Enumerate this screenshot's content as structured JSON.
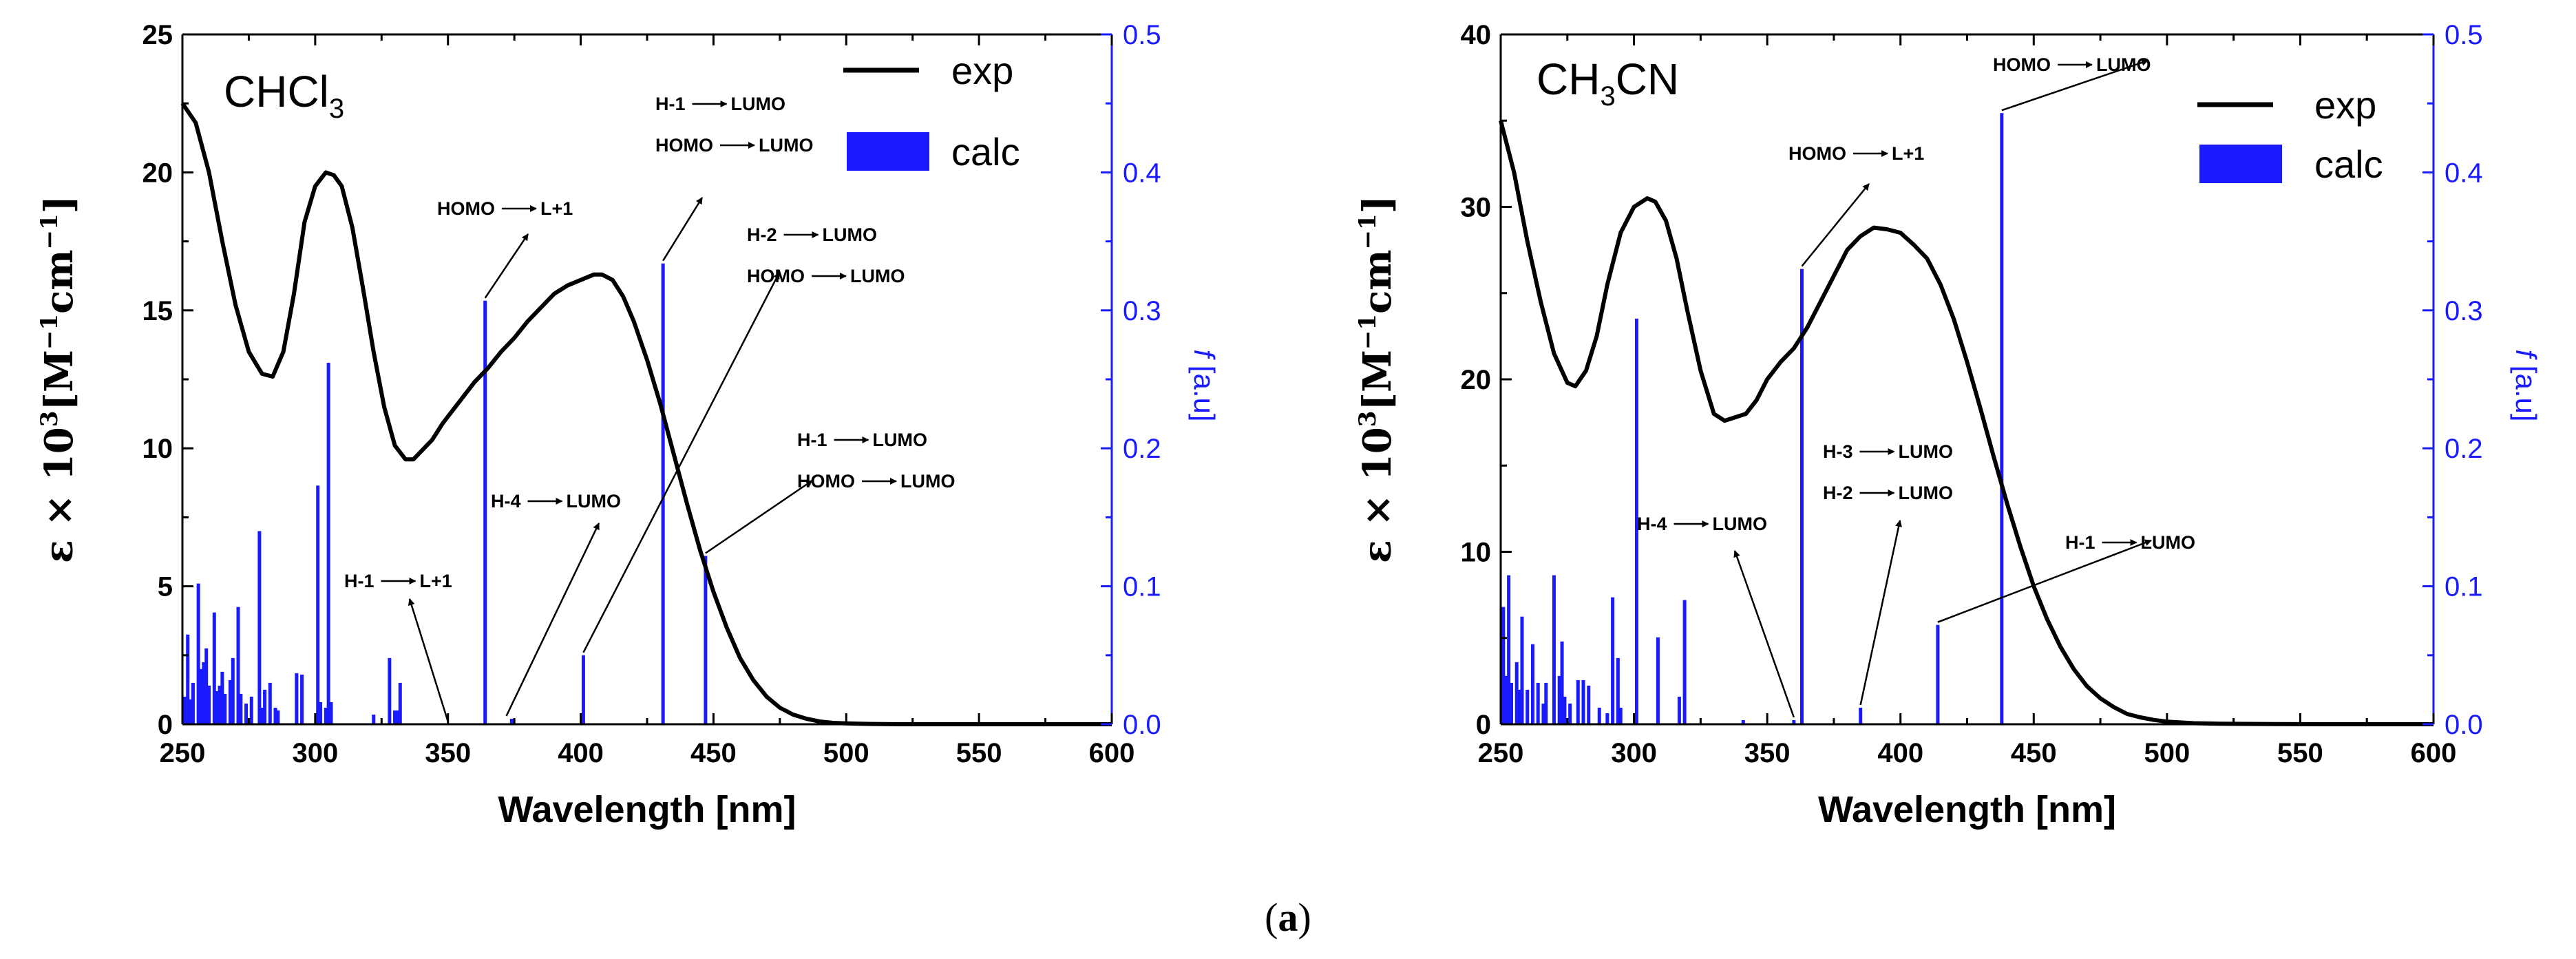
{
  "caption": {
    "open": "(",
    "label": "a",
    "close": ")"
  },
  "chart_data": [
    {
      "type": "line+bar",
      "solvent": {
        "main": "CHCl",
        "sub": "3"
      },
      "xlabel": "Wavelength [nm]",
      "ylabel": {
        "prefix": "ε × 10",
        "sup": "3",
        "mid": "[M",
        "sup2": "−1",
        "mid2": "cm",
        "sup3": "−1",
        "end": "]"
      },
      "y2label": {
        "italic": "f",
        "rest": " [a.u]"
      },
      "xlim": [
        250,
        600
      ],
      "ylim": [
        0,
        25
      ],
      "y2lim": [
        0,
        0.5
      ],
      "xticks": [
        250,
        300,
        350,
        400,
        450,
        500,
        550,
        600
      ],
      "yticks": [
        0,
        5,
        10,
        15,
        20,
        25
      ],
      "y2ticks": [
        "0.0",
        "0.1",
        "0.2",
        "0.3",
        "0.4",
        "0.5"
      ],
      "legend": {
        "exp": "exp",
        "calc": "calc"
      },
      "exp_series": {
        "name": "exp",
        "x": [
          250,
          255,
          260,
          265,
          270,
          275,
          280,
          284,
          288,
          292,
          296,
          300,
          304,
          307,
          310,
          314,
          318,
          322,
          326,
          330,
          334,
          337,
          340,
          344,
          348,
          352,
          356,
          360,
          365,
          370,
          375,
          380,
          385,
          390,
          395,
          400,
          405,
          408,
          412,
          416,
          420,
          425,
          430,
          435,
          440,
          445,
          450,
          455,
          460,
          465,
          470,
          475,
          480,
          485,
          490,
          495,
          500,
          505,
          510,
          520,
          540,
          560,
          580,
          600
        ],
        "y": [
          22.5,
          21.8,
          20.0,
          17.5,
          15.2,
          13.5,
          12.7,
          12.6,
          13.5,
          15.6,
          18.2,
          19.5,
          20.0,
          19.9,
          19.5,
          18.0,
          15.8,
          13.5,
          11.5,
          10.1,
          9.6,
          9.6,
          9.9,
          10.3,
          10.9,
          11.4,
          11.9,
          12.4,
          12.9,
          13.5,
          14.0,
          14.6,
          15.1,
          15.6,
          15.9,
          16.1,
          16.3,
          16.3,
          16.1,
          15.5,
          14.6,
          13.2,
          11.6,
          9.8,
          8.0,
          6.3,
          4.8,
          3.5,
          2.4,
          1.6,
          1.0,
          0.6,
          0.35,
          0.2,
          0.1,
          0.05,
          0.03,
          0.02,
          0.01,
          0.0,
          0.0,
          0.0,
          0.0,
          0.0
        ]
      },
      "calc_bars": {
        "name": "calc",
        "x": [
          251,
          252,
          253,
          254,
          256,
          257,
          258,
          259,
          260,
          262,
          263,
          264,
          265,
          266,
          268,
          269,
          271,
          272,
          274,
          276,
          279,
          280,
          281,
          283,
          285,
          286,
          293,
          295,
          301,
          302,
          304,
          305,
          306,
          322,
          328,
          330,
          331,
          332,
          364,
          374,
          401,
          431,
          447
        ],
        "f": [
          0.02,
          0.065,
          0.018,
          0.03,
          0.102,
          0.04,
          0.045,
          0.055,
          0.028,
          0.081,
          0.024,
          0.028,
          0.038,
          0.022,
          0.032,
          0.048,
          0.085,
          0.022,
          0.015,
          0.02,
          0.14,
          0.012,
          0.025,
          0.03,
          0.012,
          0.01,
          0.037,
          0.036,
          0.173,
          0.016,
          0.012,
          0.262,
          0.016,
          0.007,
          0.048,
          0.01,
          0.01,
          0.03,
          0.307,
          0.004,
          0.05,
          0.334,
          0.122
        ]
      },
      "annotations": [
        {
          "lines": [
            {
              "a": "HOMO",
              "b": "L+1"
            }
          ],
          "bar_x": 364,
          "bar_f": 0.307
        },
        {
          "lines": [
            {
              "a": "H-1",
              "b": "LUMO"
            },
            {
              "a": "HOMO",
              "b": "LUMO"
            }
          ],
          "bar_x": 431,
          "bar_f": 0.334
        },
        {
          "lines": [
            {
              "a": "H-2",
              "b": "LUMO"
            },
            {
              "a": "HOMO",
              "b": "LUMO"
            }
          ],
          "bar_x": 401,
          "bar_f": 0.05
        },
        {
          "lines": [
            {
              "a": "H-4",
              "b": "LUMO"
            }
          ],
          "bar_x": 372,
          "bar_f": 0.004
        },
        {
          "lines": [
            {
              "a": "H-1",
              "b": "L+1"
            }
          ],
          "bar_x": 350,
          "bar_f": 0.0
        },
        {
          "lines": [
            {
              "a": "H-1",
              "b": "LUMO"
            },
            {
              "a": "HOMO",
              "b": "LUMO"
            }
          ],
          "bar_x": 447,
          "bar_f": 0.122
        }
      ]
    },
    {
      "type": "line+bar",
      "solvent": {
        "pre": "CH",
        "sub": "3",
        "post": "CN"
      },
      "xlabel": "Wavelength [nm]",
      "ylabel": {
        "prefix": "ε × 10",
        "sup": "3",
        "mid": "[M",
        "sup2": "−1",
        "mid2": "cm",
        "sup3": "−1",
        "end": "]"
      },
      "y2label": {
        "italic": "f",
        "rest": " [a.u]"
      },
      "xlim": [
        250,
        600
      ],
      "ylim": [
        0,
        40
      ],
      "y2lim": [
        0,
        0.5
      ],
      "xticks": [
        250,
        300,
        350,
        400,
        450,
        500,
        550,
        600
      ],
      "yticks": [
        0,
        10,
        20,
        30,
        40
      ],
      "y2ticks": [
        "0.0",
        "0.1",
        "0.2",
        "0.3",
        "0.4",
        "0.5"
      ],
      "legend": {
        "exp": "exp",
        "calc": "calc"
      },
      "exp_series": {
        "name": "exp",
        "x": [
          250,
          255,
          260,
          265,
          270,
          275,
          278,
          282,
          286,
          290,
          295,
          300,
          305,
          308,
          312,
          316,
          320,
          325,
          330,
          334,
          338,
          342,
          346,
          350,
          355,
          360,
          365,
          370,
          375,
          380,
          385,
          390,
          395,
          400,
          405,
          410,
          415,
          420,
          425,
          430,
          435,
          440,
          445,
          450,
          455,
          460,
          465,
          470,
          475,
          480,
          485,
          490,
          495,
          500,
          510,
          520,
          540,
          560,
          580,
          600
        ],
        "y": [
          35.0,
          32.0,
          28.0,
          24.5,
          21.5,
          19.8,
          19.6,
          20.5,
          22.5,
          25.5,
          28.5,
          30.0,
          30.5,
          30.3,
          29.2,
          27.0,
          24.0,
          20.5,
          18.0,
          17.6,
          17.8,
          18.0,
          18.8,
          20.0,
          21.0,
          21.8,
          23.0,
          24.5,
          26.0,
          27.5,
          28.3,
          28.8,
          28.7,
          28.5,
          27.8,
          27.0,
          25.5,
          23.5,
          21.0,
          18.3,
          15.5,
          12.8,
          10.3,
          8.0,
          6.1,
          4.5,
          3.2,
          2.2,
          1.5,
          1.0,
          0.6,
          0.4,
          0.25,
          0.15,
          0.06,
          0.03,
          0.01,
          0.0,
          0.0,
          0.0
        ]
      },
      "calc_bars": {
        "name": "calc",
        "x": [
          251,
          252,
          253,
          254,
          256,
          257,
          258,
          260,
          262,
          264,
          266,
          267,
          270,
          272,
          273,
          274,
          276,
          279,
          281,
          283,
          287,
          290,
          292,
          294,
          295,
          301,
          309,
          317,
          319,
          341,
          360,
          363,
          385,
          414,
          438
        ],
        "f": [
          0.085,
          0.035,
          0.108,
          0.03,
          0.045,
          0.025,
          0.078,
          0.025,
          0.058,
          0.03,
          0.015,
          0.03,
          0.108,
          0.035,
          0.06,
          0.02,
          0.015,
          0.032,
          0.032,
          0.028,
          0.012,
          0.008,
          0.092,
          0.048,
          0.012,
          0.294,
          0.063,
          0.02,
          0.09,
          0.003,
          0.003,
          0.33,
          0.012,
          0.072,
          0.443
        ]
      },
      "annotations": [
        {
          "lines": [
            {
              "a": "HOMO",
              "b": "LUMO"
            }
          ],
          "bar_x": 438,
          "bar_f": 0.443
        },
        {
          "lines": [
            {
              "a": "HOMO",
              "b": "L+1"
            }
          ],
          "bar_x": 363,
          "bar_f": 0.33
        },
        {
          "lines": [
            {
              "a": "H-3",
              "b": "LUMO"
            },
            {
              "a": "H-2",
              "b": "LUMO"
            }
          ],
          "bar_x": 385,
          "bar_f": 0.012
        },
        {
          "lines": [
            {
              "a": "H-4",
              "b": "LUMO"
            }
          ],
          "bar_x": 360,
          "bar_f": 0.003
        },
        {
          "lines": [
            {
              "a": "H-1",
              "b": "LUMO"
            }
          ],
          "bar_x": 414,
          "bar_f": 0.072
        }
      ]
    }
  ]
}
